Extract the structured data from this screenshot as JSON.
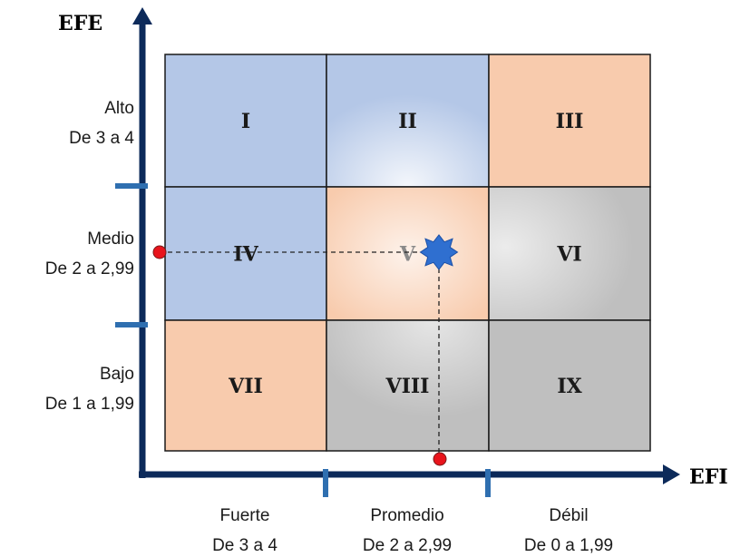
{
  "axes": {
    "y_title": "EFE",
    "x_title": "EFI"
  },
  "y_levels": [
    {
      "name": "Alto",
      "range": "De 3 a 4"
    },
    {
      "name": "Medio",
      "range": "De 2 a 2,99"
    },
    {
      "name": "Bajo",
      "range": "De 1 a 1,99"
    }
  ],
  "x_levels": [
    {
      "name": "Fuerte",
      "range": "De 3 a 4"
    },
    {
      "name": "Promedio",
      "range": "De 2 a 2,99"
    },
    {
      "name": "Débil",
      "range": "De 0 a 1,99"
    }
  ],
  "cells": [
    {
      "label": "I",
      "color": "#b4c7e7"
    },
    {
      "label": "II",
      "color": "#b4c7e7"
    },
    {
      "label": "III",
      "color": "#f8cbad"
    },
    {
      "label": "IV",
      "color": "#b4c7e7"
    },
    {
      "label": "V",
      "color": "#f8cbad"
    },
    {
      "label": "VI",
      "color": "#bfbfbf"
    },
    {
      "label": "VII",
      "color": "#f8cbad"
    },
    {
      "label": "VIII",
      "color": "#bfbfbf"
    },
    {
      "label": "IX",
      "color": "#bfbfbf"
    }
  ],
  "colors": {
    "axis": "#0c2a5a",
    "tick": "#2f6fb0",
    "marker": "#e8141c",
    "star": "#2f6fd0"
  }
}
